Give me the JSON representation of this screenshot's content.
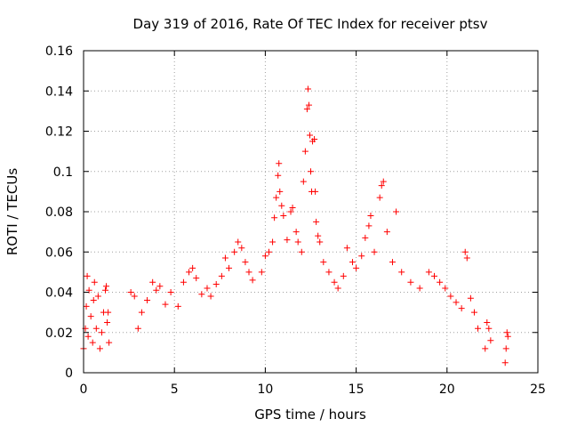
{
  "chart_data": {
    "type": "scatter",
    "title": "Day 319 of 2016, Rate Of TEC Index for receiver ptsv",
    "xlabel": "GPS time / hours",
    "ylabel": "ROTI / TECUs",
    "xlim": [
      0,
      25
    ],
    "ylim": [
      0,
      0.16
    ],
    "xticks": [
      "0",
      "5",
      "10",
      "15",
      "20",
      "25"
    ],
    "yticks": [
      "0",
      "0.02",
      "0.04",
      "0.06",
      "0.08",
      "0.1",
      "0.12",
      "0.14",
      "0.16"
    ],
    "grid": true,
    "legend": "none",
    "marker": "plus",
    "series_color": "#ff0000",
    "series": [
      {
        "points": [
          [
            0.0,
            0.012
          ],
          [
            0.1,
            0.022
          ],
          [
            0.15,
            0.033
          ],
          [
            0.2,
            0.048
          ],
          [
            0.25,
            0.018
          ],
          [
            0.3,
            0.041
          ],
          [
            0.4,
            0.028
          ],
          [
            0.5,
            0.015
          ],
          [
            0.55,
            0.036
          ],
          [
            0.6,
            0.045
          ],
          [
            0.7,
            0.022
          ],
          [
            0.8,
            0.038
          ],
          [
            0.9,
            0.012
          ],
          [
            1.0,
            0.02
          ],
          [
            1.1,
            0.03
          ],
          [
            1.2,
            0.041
          ],
          [
            1.25,
            0.043
          ],
          [
            1.3,
            0.025
          ],
          [
            1.35,
            0.03
          ],
          [
            1.4,
            0.015
          ],
          [
            2.6,
            0.04
          ],
          [
            2.8,
            0.038
          ],
          [
            3.0,
            0.022
          ],
          [
            3.2,
            0.03
          ],
          [
            3.5,
            0.036
          ],
          [
            3.8,
            0.045
          ],
          [
            4.0,
            0.041
          ],
          [
            4.2,
            0.043
          ],
          [
            4.5,
            0.034
          ],
          [
            4.8,
            0.04
          ],
          [
            5.2,
            0.033
          ],
          [
            5.5,
            0.045
          ],
          [
            5.8,
            0.05
          ],
          [
            6.0,
            0.052
          ],
          [
            6.2,
            0.047
          ],
          [
            6.5,
            0.039
          ],
          [
            6.8,
            0.042
          ],
          [
            7.0,
            0.038
          ],
          [
            7.3,
            0.044
          ],
          [
            7.6,
            0.048
          ],
          [
            7.8,
            0.057
          ],
          [
            8.0,
            0.052
          ],
          [
            8.3,
            0.06
          ],
          [
            8.5,
            0.065
          ],
          [
            8.7,
            0.062
          ],
          [
            8.9,
            0.055
          ],
          [
            9.1,
            0.05
          ],
          [
            9.3,
            0.046
          ],
          [
            9.8,
            0.05
          ],
          [
            10.0,
            0.058
          ],
          [
            10.2,
            0.06
          ],
          [
            10.4,
            0.065
          ],
          [
            10.5,
            0.077
          ],
          [
            10.6,
            0.087
          ],
          [
            10.7,
            0.098
          ],
          [
            10.75,
            0.104
          ],
          [
            10.8,
            0.09
          ],
          [
            10.9,
            0.083
          ],
          [
            11.0,
            0.078
          ],
          [
            11.2,
            0.066
          ],
          [
            11.4,
            0.08
          ],
          [
            11.5,
            0.082
          ],
          [
            11.7,
            0.07
          ],
          [
            11.8,
            0.065
          ],
          [
            12.0,
            0.06
          ],
          [
            12.1,
            0.095
          ],
          [
            12.2,
            0.11
          ],
          [
            12.3,
            0.131
          ],
          [
            12.35,
            0.141
          ],
          [
            12.4,
            0.133
          ],
          [
            12.45,
            0.118
          ],
          [
            12.5,
            0.1
          ],
          [
            12.55,
            0.09
          ],
          [
            12.6,
            0.115
          ],
          [
            12.7,
            0.116
          ],
          [
            12.75,
            0.09
          ],
          [
            12.8,
            0.075
          ],
          [
            12.9,
            0.068
          ],
          [
            13.0,
            0.065
          ],
          [
            13.2,
            0.055
          ],
          [
            13.5,
            0.05
          ],
          [
            13.8,
            0.045
          ],
          [
            14.0,
            0.042
          ],
          [
            14.3,
            0.048
          ],
          [
            14.5,
            0.062
          ],
          [
            14.8,
            0.055
          ],
          [
            15.0,
            0.052
          ],
          [
            15.3,
            0.058
          ],
          [
            15.5,
            0.067
          ],
          [
            15.7,
            0.073
          ],
          [
            15.8,
            0.078
          ],
          [
            16.0,
            0.06
          ],
          [
            16.3,
            0.087
          ],
          [
            16.4,
            0.093
          ],
          [
            16.5,
            0.095
          ],
          [
            16.7,
            0.07
          ],
          [
            17.0,
            0.055
          ],
          [
            17.2,
            0.08
          ],
          [
            17.5,
            0.05
          ],
          [
            18.0,
            0.045
          ],
          [
            18.5,
            0.042
          ],
          [
            19.0,
            0.05
          ],
          [
            19.3,
            0.048
          ],
          [
            19.6,
            0.045
          ],
          [
            19.9,
            0.042
          ],
          [
            20.2,
            0.038
          ],
          [
            20.5,
            0.035
          ],
          [
            20.8,
            0.032
          ],
          [
            21.0,
            0.06
          ],
          [
            21.1,
            0.057
          ],
          [
            21.3,
            0.037
          ],
          [
            21.5,
            0.03
          ],
          [
            21.7,
            0.022
          ],
          [
            22.1,
            0.012
          ],
          [
            22.2,
            0.025
          ],
          [
            22.3,
            0.022
          ],
          [
            22.4,
            0.016
          ],
          [
            23.2,
            0.005
          ],
          [
            23.25,
            0.012
          ],
          [
            23.3,
            0.02
          ],
          [
            23.35,
            0.018
          ]
        ]
      }
    ]
  }
}
